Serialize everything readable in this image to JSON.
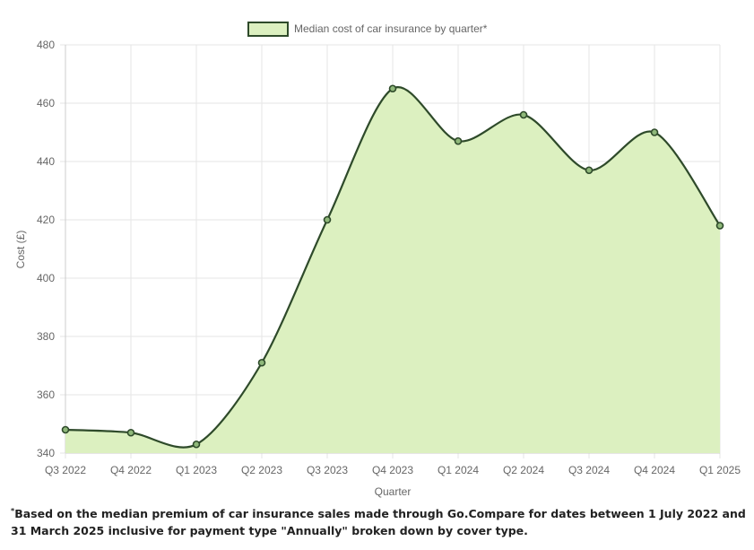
{
  "chart_data": {
    "type": "area",
    "title": "",
    "xlabel": "Quarter",
    "ylabel": "Cost (£)",
    "categories": [
      "Q3 2022",
      "Q4 2022",
      "Q1 2023",
      "Q2 2023",
      "Q3 2023",
      "Q4 2023",
      "Q1 2024",
      "Q2 2024",
      "Q3 2024",
      "Q4 2024",
      "Q1 2025"
    ],
    "series": [
      {
        "name": "Median cost of car insurance by quarter*",
        "values": [
          348,
          347,
          343,
          371,
          420,
          465,
          447,
          456,
          437,
          450,
          418
        ]
      }
    ],
    "ylim": [
      340,
      480
    ],
    "yticks": [
      340,
      360,
      380,
      400,
      420,
      440,
      460,
      480
    ],
    "grid": true,
    "legend": "top-center",
    "colors": {
      "fill": "#dcf0c0",
      "line": "#2e4a2a",
      "grid": "#e6e6e6",
      "text": "#666666"
    }
  },
  "footnote": {
    "marker": "*",
    "text": "Based on the median premium of car insurance sales made through Go.Compare for dates between 1 July 2022 and 31 March 2025 inclusive for payment type \"Annually\" broken down by cover type."
  }
}
